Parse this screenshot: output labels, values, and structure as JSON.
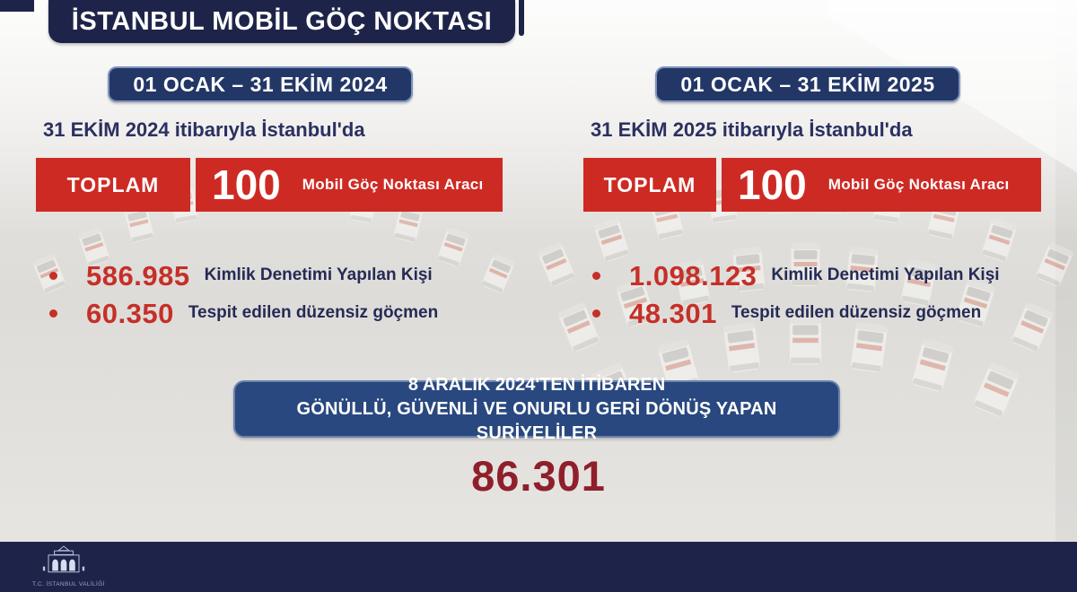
{
  "header": {
    "title": "İSTANBUL MOBİL GÖÇ NOKTASI"
  },
  "columns": [
    {
      "period": "01 OCAK – 31 EKİM 2024",
      "as_of": "31 EKİM 2024 itibarıyla İstanbul'da",
      "total_label": "TOPLAM",
      "total_value": "100",
      "total_unit": "Mobil Göç Noktası Aracı",
      "stats": [
        {
          "value": "586.985",
          "label": "Kimlik Denetimi Yapılan Kişi"
        },
        {
          "value": "60.350",
          "label": "Tespit edilen düzensiz göçmen"
        }
      ]
    },
    {
      "period": "01 OCAK – 31 EKİM 2025",
      "as_of": "31 EKİM 2025 itibarıyla İstanbul'da",
      "total_label": "TOPLAM",
      "total_value": "100",
      "total_unit": "Mobil Göç Noktası Aracı",
      "stats": [
        {
          "value": "1.098.123",
          "label": "Kimlik Denetimi Yapılan Kişi"
        },
        {
          "value": "48.301",
          "label": "Tespit edilen düzensiz göçmen"
        }
      ]
    }
  ],
  "returns_banner": {
    "line1": "8 ARALIK 2024'TEN İTİBAREN",
    "line2": "GÖNÜLLÜ, GÜVENLİ VE ONURLU GERİ DÖNÜŞ YAPAN SURİYELİLER",
    "total": "86.301"
  },
  "footer": {
    "logo_icon": "government-building-icon",
    "logo_caption": "T.C. İSTANBUL VALİLİĞİ"
  },
  "colors": {
    "navy": "#1e2449",
    "pill_blue": "#233767",
    "banner_blue": "#29487f",
    "red": "#ce2a24",
    "stat_red": "#c62f28",
    "maroon": "#8e1f2b"
  }
}
